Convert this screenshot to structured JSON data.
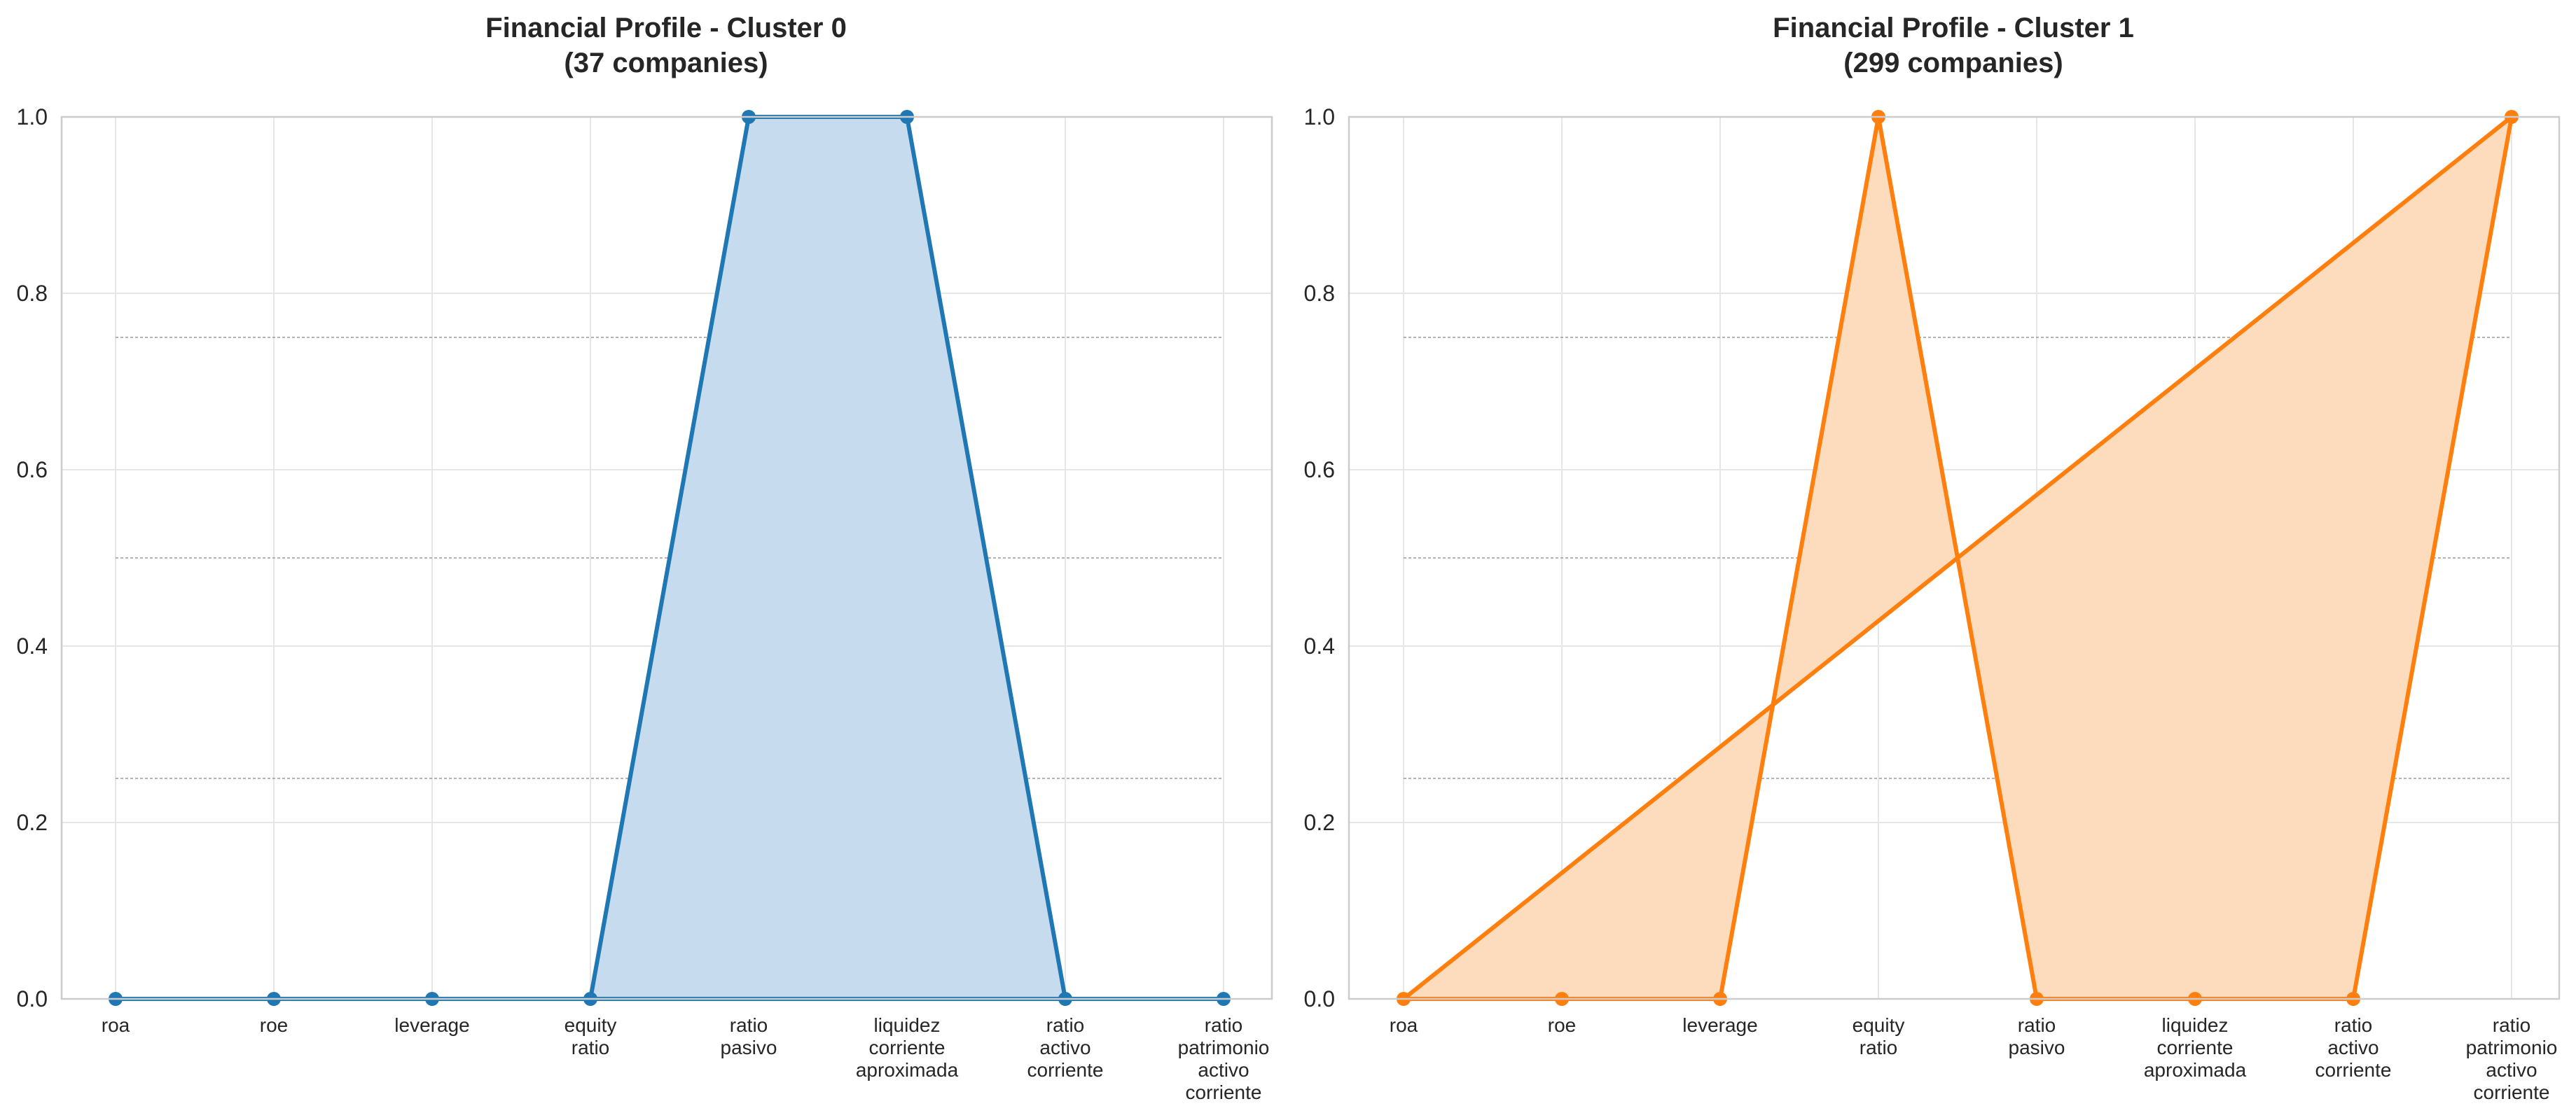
{
  "chart_data": [
    {
      "type": "line",
      "title_line1": "Financial Profile - Cluster 0",
      "title_line2": "(37 companies)",
      "categories": [
        [
          "roa"
        ],
        [
          "roe"
        ],
        [
          "leverage"
        ],
        [
          "equity",
          "ratio"
        ],
        [
          "ratio",
          "pasivo"
        ],
        [
          "liquidez",
          "corriente",
          "aproximada"
        ],
        [
          "ratio",
          "activo",
          "corriente"
        ],
        [
          "ratio",
          "patrimonio",
          "activo",
          "corriente"
        ]
      ],
      "series": [
        {
          "values": [
            0,
            0,
            0,
            0,
            1,
            1,
            0,
            0
          ]
        }
      ],
      "closed_polygon": true,
      "ylim": [
        0,
        1
      ],
      "yticks": [
        "0.0",
        "0.2",
        "0.4",
        "0.6",
        "0.8",
        "1.0"
      ],
      "reference_lines": [
        0.25,
        0.5,
        0.75
      ],
      "grid": true,
      "color": "#1f77b4",
      "fill_color": "#c6dbed"
    },
    {
      "type": "line",
      "title_line1": "Financial Profile - Cluster 1",
      "title_line2": "(299 companies)",
      "categories": [
        [
          "roa"
        ],
        [
          "roe"
        ],
        [
          "leverage"
        ],
        [
          "equity",
          "ratio"
        ],
        [
          "ratio",
          "pasivo"
        ],
        [
          "liquidez",
          "corriente",
          "aproximada"
        ],
        [
          "ratio",
          "activo",
          "corriente"
        ],
        [
          "ratio",
          "patrimonio",
          "activo",
          "corriente"
        ]
      ],
      "series": [
        {
          "values": [
            0,
            0,
            0,
            1,
            0,
            0,
            0,
            1
          ]
        }
      ],
      "closed_polygon": true,
      "ylim": [
        0,
        1
      ],
      "yticks": [
        "0.0",
        "0.2",
        "0.4",
        "0.6",
        "0.8",
        "1.0"
      ],
      "reference_lines": [
        0.25,
        0.5,
        0.75
      ],
      "grid": true,
      "color": "#ff7f0e",
      "fill_color": "#fddcbe"
    }
  ]
}
